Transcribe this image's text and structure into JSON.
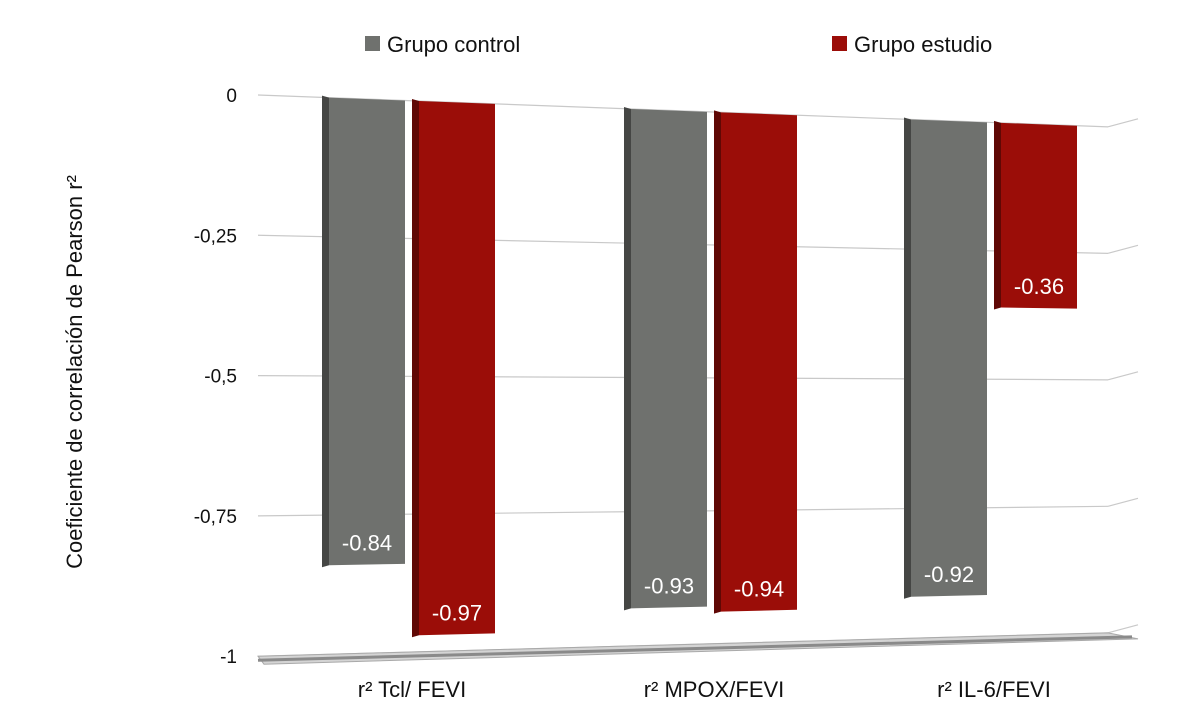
{
  "chart_data": {
    "type": "bar",
    "categories": [
      "r² Tcl/ FEVI",
      "r² MPOX/FEVI",
      "r² IL-6/FEVI"
    ],
    "series": [
      {
        "name": "Grupo control",
        "values": [
          -0.84,
          -0.93,
          -0.92
        ],
        "labels": [
          "-0.84",
          "-0.93",
          "-0.92"
        ],
        "color": "#6f716e"
      },
      {
        "name": "Grupo estudio",
        "values": [
          -0.97,
          -0.94,
          -0.36
        ],
        "labels": [
          "-0.97",
          "-0.94",
          "-0.36"
        ],
        "color": "#9b0d08"
      }
    ],
    "title": "",
    "xlabel": "",
    "ylabel": "Coeficiente de correlación de Pearson r²",
    "ylim": [
      -1,
      0
    ],
    "yticks": [
      0,
      -0.25,
      -0.5,
      -0.75,
      -1
    ],
    "ytick_labels": [
      "0",
      "-0,25",
      "-0,5",
      "-0,75",
      "-1"
    ],
    "grid": true,
    "legend": "top",
    "style": "3d-perspective"
  }
}
